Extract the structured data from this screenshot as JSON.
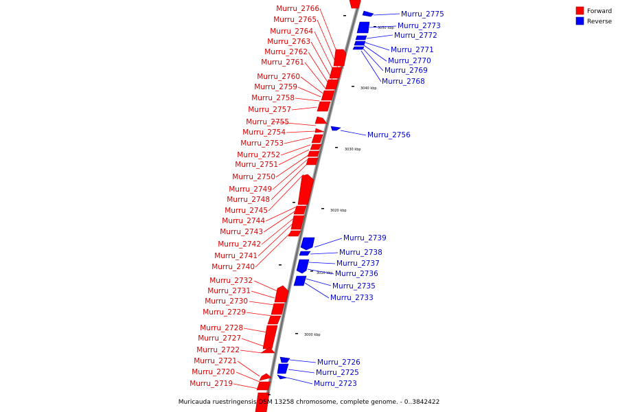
{
  "caption": "Muricauda ruestringensis DSM 13258 chromosome, complete genome. - 0..3842422",
  "legend": [
    {
      "label": "Forward",
      "color": "#ff0000"
    },
    {
      "label": "Reverse",
      "color": "#0000ff"
    }
  ],
  "ticks": [
    "3050 kbp",
    "3040 kbp",
    "3030 kbp",
    "3020 kbp",
    "3010 kbp",
    "3000 kbp"
  ],
  "forward_genes": [
    "Murru_2766",
    "Murru_2765",
    "Murru_2764",
    "Murru_2763",
    "Murru_2762",
    "Murru_2761",
    "Murru_2760",
    "Murru_2759",
    "Murru_2758",
    "Murru_2757",
    "Murru_2755",
    "Murru_2754",
    "Murru_2753",
    "Murru_2752",
    "Murru_2751",
    "Murru_2750",
    "Murru_2749",
    "Murru_2748",
    "Murru_2745",
    "Murru_2744",
    "Murru_2743",
    "Murru_2742",
    "Murru_2741",
    "Murru_2740",
    "Murru_2732",
    "Murru_2731",
    "Murru_2730",
    "Murru_2729",
    "Murru_2728",
    "Murru_2727",
    "Murru_2722",
    "Murru_2721",
    "Murru_2720",
    "Murru_2719"
  ],
  "reverse_genes": [
    "Murru_2775",
    "Murru_2773",
    "Murru_2772",
    "Murru_2771",
    "Murru_2770",
    "Murru_2769",
    "Murru_2768",
    "Murru_2756",
    "Murru_2739",
    "Murru_2738",
    "Murru_2737",
    "Murru_2736",
    "Murru_2735",
    "Murru_2733",
    "Murru_2726",
    "Murru_2725",
    "Murru_2723"
  ]
}
